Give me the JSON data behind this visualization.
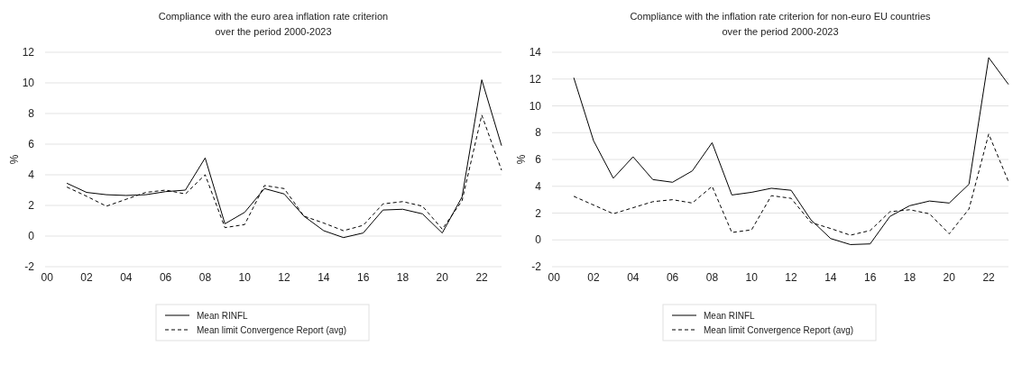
{
  "chart_data": [
    {
      "type": "line",
      "title": "Compliance with the euro area inflation rate criterion\nover the period 2000-2023",
      "ylabel": "%",
      "x": [
        2001,
        2002,
        2003,
        2004,
        2005,
        2006,
        2007,
        2008,
        2009,
        2010,
        2011,
        2012,
        2013,
        2014,
        2015,
        2016,
        2017,
        2018,
        2019,
        2020,
        2021,
        2022,
        2023
      ],
      "xlim": [
        1999.9,
        2023
      ],
      "xticks": [
        {
          "value": 2000,
          "label": "00"
        },
        {
          "value": 2002,
          "label": "02"
        },
        {
          "value": 2004,
          "label": "04"
        },
        {
          "value": 2006,
          "label": "06"
        },
        {
          "value": 2008,
          "label": "08"
        },
        {
          "value": 2010,
          "label": "10"
        },
        {
          "value": 2012,
          "label": "12"
        },
        {
          "value": 2014,
          "label": "14"
        },
        {
          "value": 2016,
          "label": "16"
        },
        {
          "value": 2018,
          "label": "18"
        },
        {
          "value": 2020,
          "label": "20"
        },
        {
          "value": 2022,
          "label": "22"
        }
      ],
      "ylim": [
        -2,
        12
      ],
      "yticks": [
        -2,
        0,
        2,
        4,
        6,
        8,
        10,
        12
      ],
      "grid": "y",
      "legend": "bottom",
      "marker": "none",
      "series": [
        {
          "name": "Mean RINFL",
          "color": "#000000",
          "line_style": "solid",
          "values": [
            3.45,
            2.85,
            2.7,
            2.65,
            2.7,
            2.9,
            3.0,
            5.1,
            0.8,
            1.55,
            3.1,
            2.75,
            1.3,
            0.35,
            -0.1,
            0.2,
            1.7,
            1.75,
            1.45,
            0.2,
            2.55,
            10.2,
            5.9
          ]
        },
        {
          "name": "Mean limit Convergence Report (avg)",
          "color": "#000000",
          "line_style": "dashed",
          "values": [
            3.2,
            2.6,
            1.95,
            2.4,
            2.85,
            3.0,
            2.75,
            4.0,
            0.55,
            0.75,
            3.3,
            3.1,
            1.3,
            0.85,
            0.35,
            0.7,
            2.1,
            2.25,
            1.95,
            0.45,
            2.3,
            7.9,
            4.3
          ]
        }
      ]
    },
    {
      "type": "line",
      "title": "Compliance with the inflation rate criterion for non-euro EU countries\nover the period 2000-2023",
      "ylabel": "%",
      "x": [
        2001,
        2002,
        2003,
        2004,
        2005,
        2006,
        2007,
        2008,
        2009,
        2010,
        2011,
        2012,
        2013,
        2014,
        2015,
        2016,
        2017,
        2018,
        2019,
        2020,
        2021,
        2022,
        2023
      ],
      "xlim": [
        1999.9,
        2023
      ],
      "xticks": [
        {
          "value": 2000,
          "label": "00"
        },
        {
          "value": 2002,
          "label": "02"
        },
        {
          "value": 2004,
          "label": "04"
        },
        {
          "value": 2006,
          "label": "06"
        },
        {
          "value": 2008,
          "label": "08"
        },
        {
          "value": 2010,
          "label": "10"
        },
        {
          "value": 2012,
          "label": "12"
        },
        {
          "value": 2014,
          "label": "14"
        },
        {
          "value": 2016,
          "label": "16"
        },
        {
          "value": 2018,
          "label": "18"
        },
        {
          "value": 2020,
          "label": "20"
        },
        {
          "value": 2022,
          "label": "22"
        }
      ],
      "ylim": [
        -2,
        14
      ],
      "yticks": [
        -2,
        0,
        2,
        4,
        6,
        8,
        10,
        12,
        14
      ],
      "grid": "y",
      "legend": "bottom",
      "marker": "none",
      "series": [
        {
          "name": "Mean RINFL",
          "color": "#000000",
          "line_style": "solid",
          "values": [
            12.1,
            7.4,
            4.6,
            6.2,
            4.5,
            4.3,
            5.15,
            7.25,
            3.35,
            3.55,
            3.85,
            3.7,
            1.5,
            0.1,
            -0.35,
            -0.3,
            1.75,
            2.55,
            2.9,
            2.75,
            4.15,
            13.6,
            11.6
          ]
        },
        {
          "name": "Mean limit Convergence Report (avg)",
          "color": "#000000",
          "line_style": "dashed",
          "values": [
            3.25,
            2.6,
            1.95,
            2.4,
            2.85,
            3.0,
            2.75,
            4.0,
            0.55,
            0.75,
            3.3,
            3.1,
            1.3,
            0.85,
            0.35,
            0.7,
            2.1,
            2.25,
            1.95,
            0.45,
            2.3,
            7.9,
            4.35
          ]
        }
      ]
    }
  ]
}
